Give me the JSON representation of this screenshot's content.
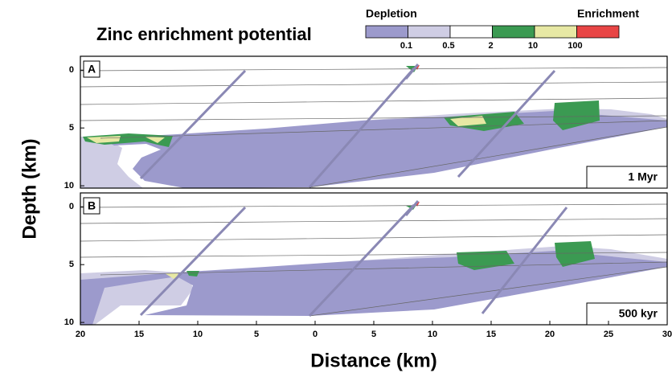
{
  "chart_data": {
    "type": "contour",
    "title": "Zinc enrichment potential",
    "colorbar": {
      "left_label": "Depletion",
      "right_label": "Enrichment",
      "colors": [
        "#9c9acc",
        "#cfcde4",
        "#ffffff",
        "#3b9a52",
        "#e7e8a4",
        "#e84545"
      ],
      "ticks": [
        0.1,
        0.5,
        2,
        10,
        100
      ]
    },
    "xlabel": "Distance (km)",
    "ylabel": "Depth (km)",
    "xlim": [
      -20,
      30
    ],
    "xticks": [
      {
        "value": -20,
        "label": "20"
      },
      {
        "value": -15,
        "label": "15"
      },
      {
        "value": -10,
        "label": "10"
      },
      {
        "value": -5,
        "label": "5"
      },
      0,
      5,
      10,
      15,
      20,
      25,
      30
    ],
    "panels": [
      {
        "label": "A",
        "time": "1 Myr",
        "ylim": [
          -1.2,
          10.2
        ],
        "invert_y": true,
        "yticks": [
          0,
          5,
          10
        ]
      },
      {
        "label": "B",
        "time": "500 kyr",
        "ylim": [
          -1.2,
          10.2
        ],
        "invert_y": true,
        "yticks": [
          0,
          5,
          10
        ]
      }
    ]
  }
}
